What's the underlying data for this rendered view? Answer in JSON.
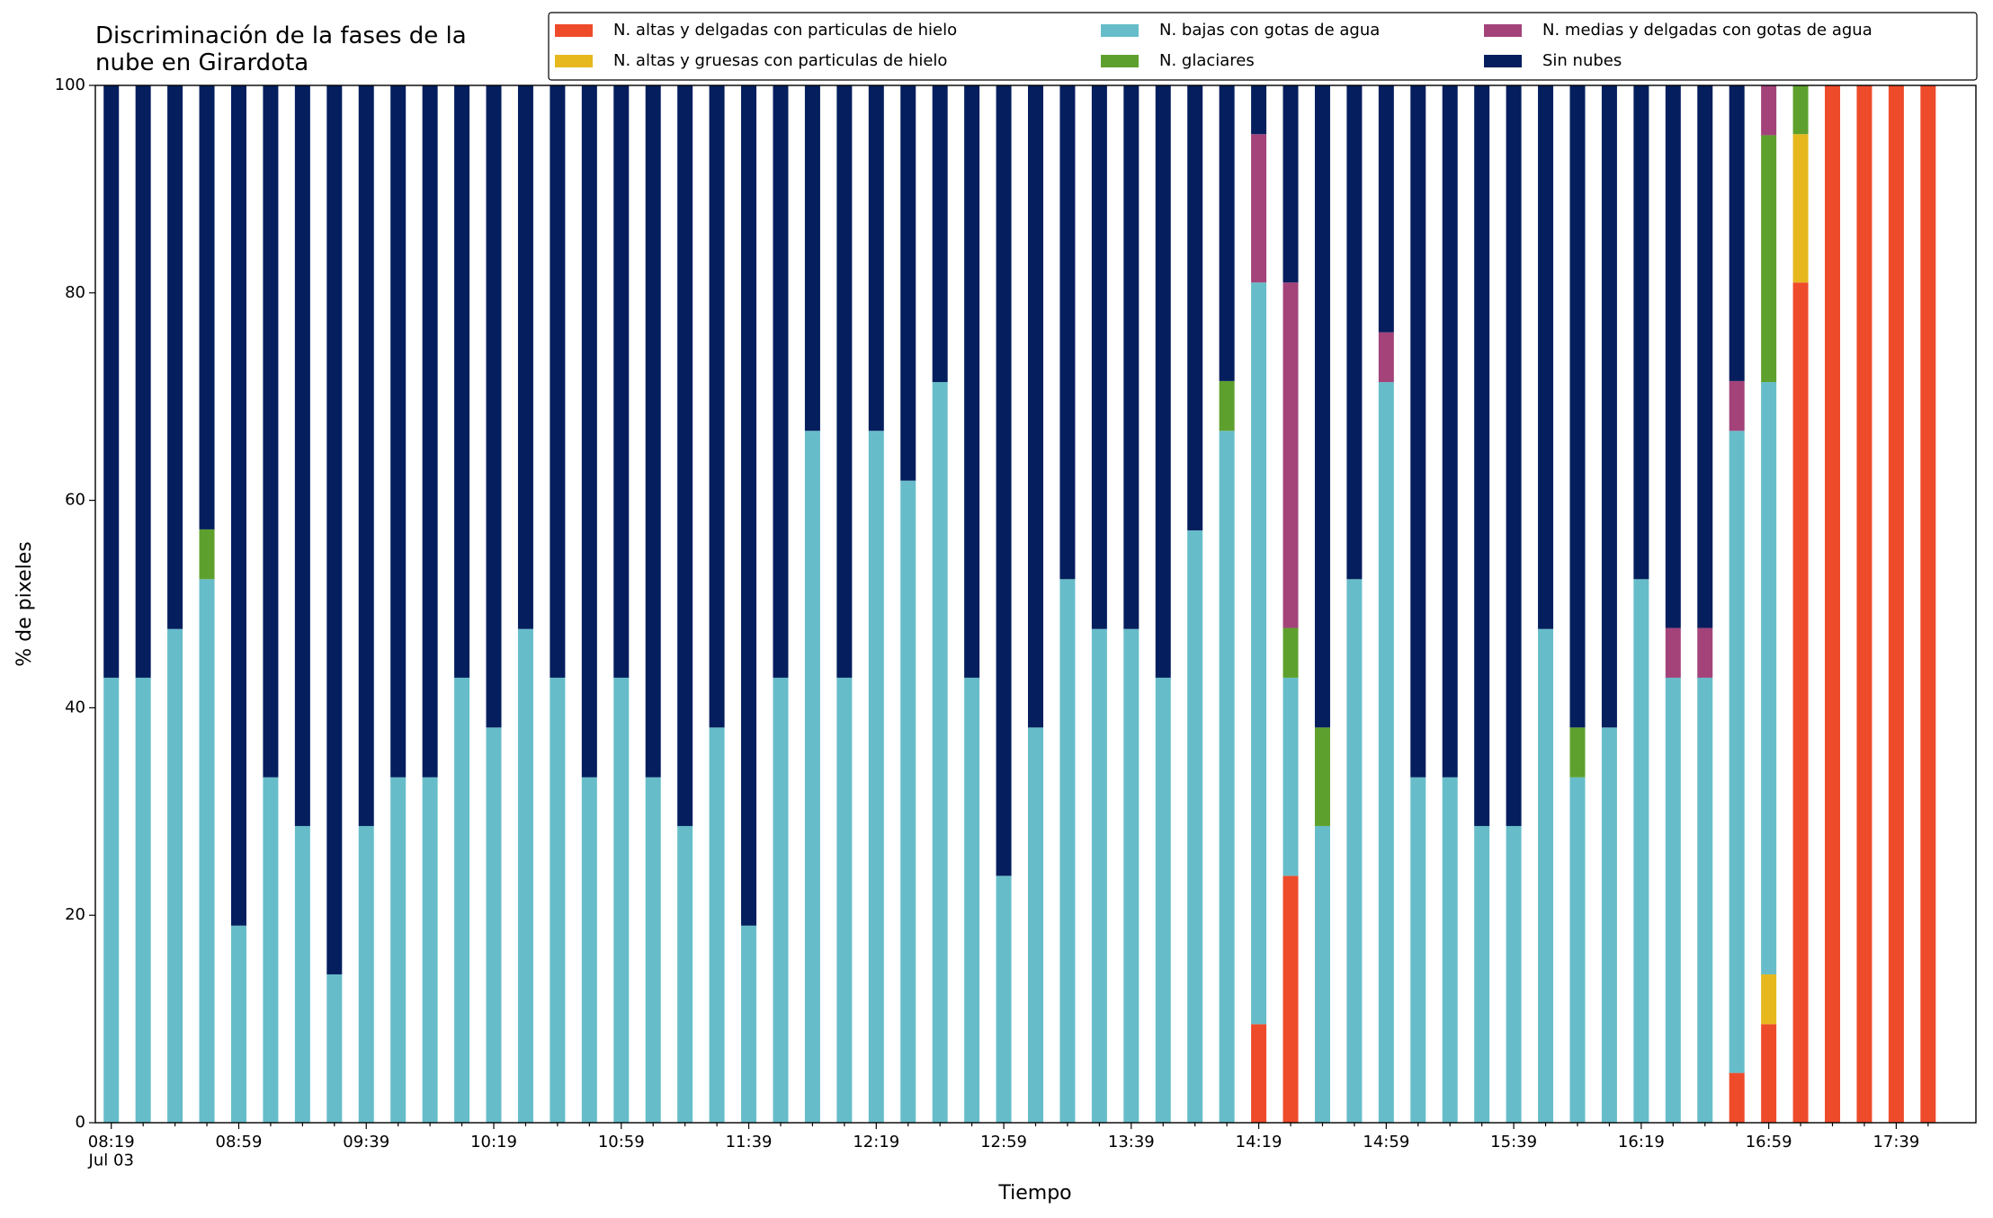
{
  "chart_data": {
    "type": "stacked_bar",
    "title": "Discriminación de la fases de la\nnube en Girardota",
    "xlabel": "Tiempo",
    "ylabel": "% de pixeles",
    "categories": [
      "08:19\nJul 03",
      null,
      null,
      null,
      "08:59",
      null,
      null,
      null,
      "09:39",
      null,
      null,
      null,
      "10:19",
      null,
      null,
      null,
      "10:59",
      null,
      null,
      null,
      "11:39",
      null,
      null,
      null,
      "12:19",
      null,
      null,
      null,
      "12:59",
      null,
      null,
      null,
      "13:39",
      null,
      null,
      null,
      "14:19",
      null,
      null,
      null,
      "14:59",
      null,
      null,
      null,
      "15:39",
      null,
      null,
      null,
      "16:19",
      null,
      null,
      null,
      "16:59",
      null,
      null,
      null,
      "17:39",
      null
    ],
    "series": [
      {
        "name": "N. altas y delgadas con particulas de hielo",
        "color": "#ee4b2b",
        "values": [
          0,
          0,
          0,
          0,
          0,
          0,
          0,
          0,
          0,
          0,
          0,
          0,
          0,
          0,
          0,
          0,
          0,
          0,
          0,
          0,
          0,
          0,
          0,
          0,
          0,
          0,
          0,
          0,
          0,
          0,
          0,
          0,
          0,
          0,
          0,
          0,
          9.5,
          23.8,
          0,
          0,
          0,
          0,
          0,
          0,
          0,
          0,
          0,
          0,
          0,
          0,
          0,
          4.8,
          9.5,
          81.0,
          100,
          100,
          100,
          100
        ]
      },
      {
        "name": "N. altas y gruesas con particulas de hielo",
        "color": "#e6b81e",
        "values": [
          0,
          0,
          0,
          0,
          0,
          0,
          0,
          0,
          0,
          0,
          0,
          0,
          0,
          0,
          0,
          0,
          0,
          0,
          0,
          0,
          0,
          0,
          0,
          0,
          0,
          0,
          0,
          0,
          0,
          0,
          0,
          0,
          0,
          0,
          0,
          0,
          0,
          0,
          0,
          0,
          0,
          0,
          0,
          0,
          0,
          0,
          0,
          0,
          0,
          0,
          0,
          0,
          4.8,
          14.3,
          0,
          0,
          0,
          0
        ]
      },
      {
        "name": "N. bajas con gotas de agua",
        "color": "#66bdc9",
        "values": [
          42.9,
          42.9,
          47.6,
          52.4,
          19.0,
          33.3,
          28.6,
          14.3,
          28.6,
          33.3,
          33.3,
          42.9,
          38.1,
          47.6,
          42.9,
          33.3,
          42.9,
          33.3,
          28.6,
          38.1,
          19.0,
          42.9,
          66.7,
          42.9,
          66.7,
          61.9,
          71.4,
          42.9,
          23.8,
          38.1,
          52.4,
          47.6,
          47.6,
          42.9,
          57.1,
          66.7,
          71.5,
          19.1,
          28.6,
          52.4,
          71.4,
          33.3,
          33.3,
          28.6,
          28.6,
          47.6,
          33.3,
          38.1,
          52.4,
          42.9,
          42.9,
          61.9,
          57.1,
          0,
          0,
          0,
          0,
          0
        ]
      },
      {
        "name": "N. glaciares",
        "color": "#5ea02d",
        "values": [
          0,
          0,
          0,
          4.8,
          0,
          0,
          0,
          0,
          0,
          0,
          0,
          0,
          0,
          0,
          0,
          0,
          0,
          0,
          0,
          0,
          0,
          0,
          0,
          0,
          0,
          0,
          0,
          0,
          0,
          0,
          0,
          0,
          0,
          0,
          0,
          4.8,
          0,
          4.8,
          9.5,
          0,
          0,
          0,
          0,
          0,
          0,
          0,
          4.8,
          0,
          0,
          0,
          0,
          0,
          23.8,
          4.7,
          0,
          0,
          0,
          0
        ]
      },
      {
        "name": "N. medias y delgadas con gotas de agua",
        "color": "#a3437a",
        "values": [
          0,
          0,
          0,
          0,
          0,
          0,
          0,
          0,
          0,
          0,
          0,
          0,
          0,
          0,
          0,
          0,
          0,
          0,
          0,
          0,
          0,
          0,
          0,
          0,
          0,
          0,
          0,
          0,
          0,
          0,
          0,
          0,
          0,
          0,
          0,
          0,
          14.3,
          33.3,
          0,
          0,
          4.8,
          0,
          0,
          0,
          0,
          0,
          0,
          0,
          0,
          4.8,
          4.8,
          4.8,
          4.8,
          0,
          0,
          0,
          0,
          0
        ]
      },
      {
        "name": "Sin nubes",
        "color": "#041e5e",
        "values": [
          57.1,
          57.1,
          52.4,
          42.8,
          81.0,
          66.7,
          71.4,
          85.7,
          71.4,
          66.7,
          66.7,
          57.1,
          61.9,
          52.4,
          57.1,
          66.7,
          57.1,
          66.7,
          71.4,
          61.9,
          81.0,
          57.1,
          33.3,
          57.1,
          33.3,
          38.1,
          28.6,
          57.1,
          76.2,
          61.9,
          47.6,
          52.4,
          52.4,
          57.1,
          42.9,
          28.5,
          4.7,
          19.0,
          61.9,
          47.6,
          23.8,
          66.7,
          66.7,
          71.4,
          71.4,
          52.4,
          61.9,
          61.9,
          47.6,
          52.3,
          52.3,
          28.5,
          0,
          0,
          0,
          0,
          0,
          0
        ]
      }
    ],
    "ylim": [
      0,
      100
    ],
    "yticks": [
      0,
      20,
      40,
      60,
      80,
      100
    ],
    "legend": "upper right"
  }
}
